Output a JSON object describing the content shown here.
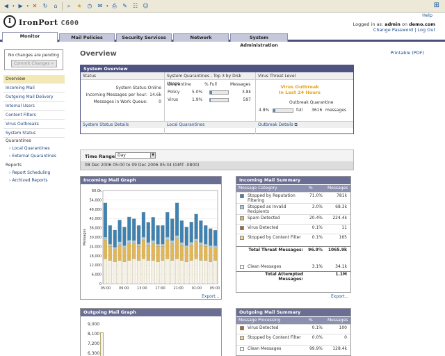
{
  "header": {
    "brand": "IronPort",
    "model": "C600",
    "help": "Help",
    "login_prefix": "Logged in as:",
    "user": "admin",
    "on": "on",
    "host": "demo.com",
    "change_password": "Change Password",
    "logout": "Log Out"
  },
  "tabs": [
    "Monitor",
    "Mail Policies",
    "Security Services",
    "Network",
    "System Administration"
  ],
  "sidebar": {
    "pending": "No changes are pending",
    "commit": "Commit Changes »",
    "items": [
      "Overview",
      "Incoming Mail",
      "Outgoing Mail Delivery",
      "Internal Users",
      "Content Filters",
      "Virus Outbreaks",
      "System Status",
      "Quarantines",
      "Local Quarantines",
      "External Quarantines",
      "Reports",
      "Report Scheduling",
      "Archived Reports"
    ]
  },
  "main": {
    "title": "Overview",
    "printable": "Printable (PDF)"
  },
  "system_overview": {
    "header": "System Overview",
    "col_status": "Status",
    "col_quarantine": "System Quarantines - Top 3 by Disk Usage",
    "col_threat": "Virus Threat Level",
    "status_rows": [
      {
        "label": "System Status:",
        "value": "Online"
      },
      {
        "label": "Incoming Messages per hour:",
        "value": "14.6k"
      },
      {
        "label": "Messages in Work Queue:",
        "value": "0"
      }
    ],
    "q_headers": [
      "Quarantine",
      "% Full",
      "Messages"
    ],
    "quarantines": [
      {
        "name": "Policy",
        "pct": "5.0%",
        "pct_value": 5.0,
        "messages": "3.8k"
      },
      {
        "name": "Virus",
        "pct": "1.9%",
        "pct_value": 1.9,
        "messages": "597"
      }
    ],
    "threat_line1": "Virus Outbreak",
    "threat_line2": "In Last 24 Hours",
    "outbreak_q_label": "Outbreak Quarantine",
    "outbreak_pct": "4.8%",
    "outbreak_pct_value": 4.8,
    "outbreak_full": "full",
    "outbreak_msgs": "3616",
    "outbreak_msgs_label": "messages",
    "link_status": "System Status Details",
    "link_quarantine": "Local Quarantines",
    "link_outbreak": "Outbreak Details"
  },
  "time_range": {
    "label": "Time Range:",
    "value": "Day",
    "range": "08 Dec 2006 05:00 to 09 Dec 2006 05:34 (GMT -0800)"
  },
  "incoming_graph": {
    "title": "Incoming Mail Graph",
    "export": "Export..."
  },
  "incoming_summary": {
    "title": "Incoming Mail Summary",
    "headers": [
      "Message Category",
      "%",
      "Messages"
    ],
    "rows": [
      {
        "color": "#3e82b3",
        "label": "Stopped by Reputation Filtering",
        "pct": "71.0%",
        "msgs": "781k"
      },
      {
        "color": "#a9c9dc",
        "label": "Stopped as Invalid Recipients",
        "pct": "3.0%",
        "msgs": "68.3k"
      },
      {
        "color": "#e0b656",
        "label": "Spam Detected",
        "pct": "20.4%",
        "msgs": "224.4k"
      },
      {
        "color": "#b5651d",
        "label": "Virus Detected",
        "pct": "0.1%",
        "msgs": "11"
      },
      {
        "color": "#ecd595",
        "label": "Stopped by Content Filter",
        "pct": "0.1%",
        "msgs": "165"
      }
    ],
    "total_threat_label": "Total Threat Messages:",
    "total_threat_pct": "96.9%",
    "total_threat_msgs": "1065.9k",
    "clean_label": "Clean Messages",
    "clean_pct": "3.1%",
    "clean_msgs": "34.1k",
    "total_attempted_label": "Total Attempted Messages:",
    "total_attempted_msgs": "1.1M",
    "export": "Export..."
  },
  "outgoing_graph": {
    "title": "Outgoing Mail Graph",
    "yticks": [
      "9,000",
      "8,100",
      "7,200",
      "6,300"
    ]
  },
  "outgoing_summary": {
    "title": "Outgoing Mail Summary",
    "headers": [
      "Message Processing",
      "%",
      "Messages"
    ],
    "rows": [
      {
        "color": "#b5651d",
        "label": "Virus Detected",
        "pct": "0.1%",
        "msgs": "100"
      },
      {
        "color": "#ecd595",
        "label": "Stopped by Content Filter",
        "pct": "0.0%",
        "msgs": "0"
      },
      {
        "color": "#ffffff",
        "label": "Clean Messages",
        "pct": "99.9%",
        "msgs": "128.4k"
      }
    ]
  },
  "chart_data": {
    "type": "bar",
    "title": "Incoming Mail Graph",
    "ylabel": "Messages",
    "ylim": [
      0,
      60000
    ],
    "yticks": [
      "0",
      "6,000",
      "12,000",
      "18,000",
      "24,000",
      "30,000",
      "36,000",
      "42,000",
      "48,000",
      "54,000",
      "60.0k"
    ],
    "xticks": [
      "05:00",
      "09:00",
      "13:00",
      "17:00",
      "21:00",
      "01:00",
      "05:00"
    ],
    "series": [
      {
        "name": "Clean",
        "color": "#f5f1e4",
        "values": [
          16000,
          15000,
          14000,
          15000,
          14000,
          15000,
          16000,
          15000,
          16000,
          15000,
          15000,
          14000,
          15000,
          16000,
          15000,
          16000,
          15000,
          14000,
          15000,
          16000,
          15000,
          15000,
          14000,
          15000
        ]
      },
      {
        "name": "Spam Detected",
        "color": "#e0b656",
        "values": [
          12000,
          9000,
          8000,
          10000,
          9000,
          11000,
          10000,
          9000,
          12000,
          10000,
          11000,
          10000,
          9000,
          12000,
          11000,
          13000,
          10000,
          9000,
          10000,
          11000,
          10000,
          9000,
          9000,
          8000
        ]
      },
      {
        "name": "Invalid Recipients",
        "color": "#a9c9dc",
        "values": [
          2000,
          1500,
          1500,
          2000,
          1500,
          2000,
          1800,
          1500,
          2000,
          1600,
          1800,
          1500,
          1500,
          2000,
          1800,
          2000,
          1600,
          1500,
          1700,
          1800,
          1600,
          1500,
          1500,
          1400
        ]
      },
      {
        "name": "Reputation Filtering",
        "color": "#3e82b3",
        "values": [
          22000,
          12000,
          11000,
          14000,
          12000,
          15000,
          14000,
          12000,
          16000,
          13000,
          15000,
          12000,
          12000,
          16000,
          14000,
          21000,
          14000,
          12000,
          13000,
          16000,
          14000,
          12000,
          11000,
          10000
        ]
      }
    ]
  }
}
